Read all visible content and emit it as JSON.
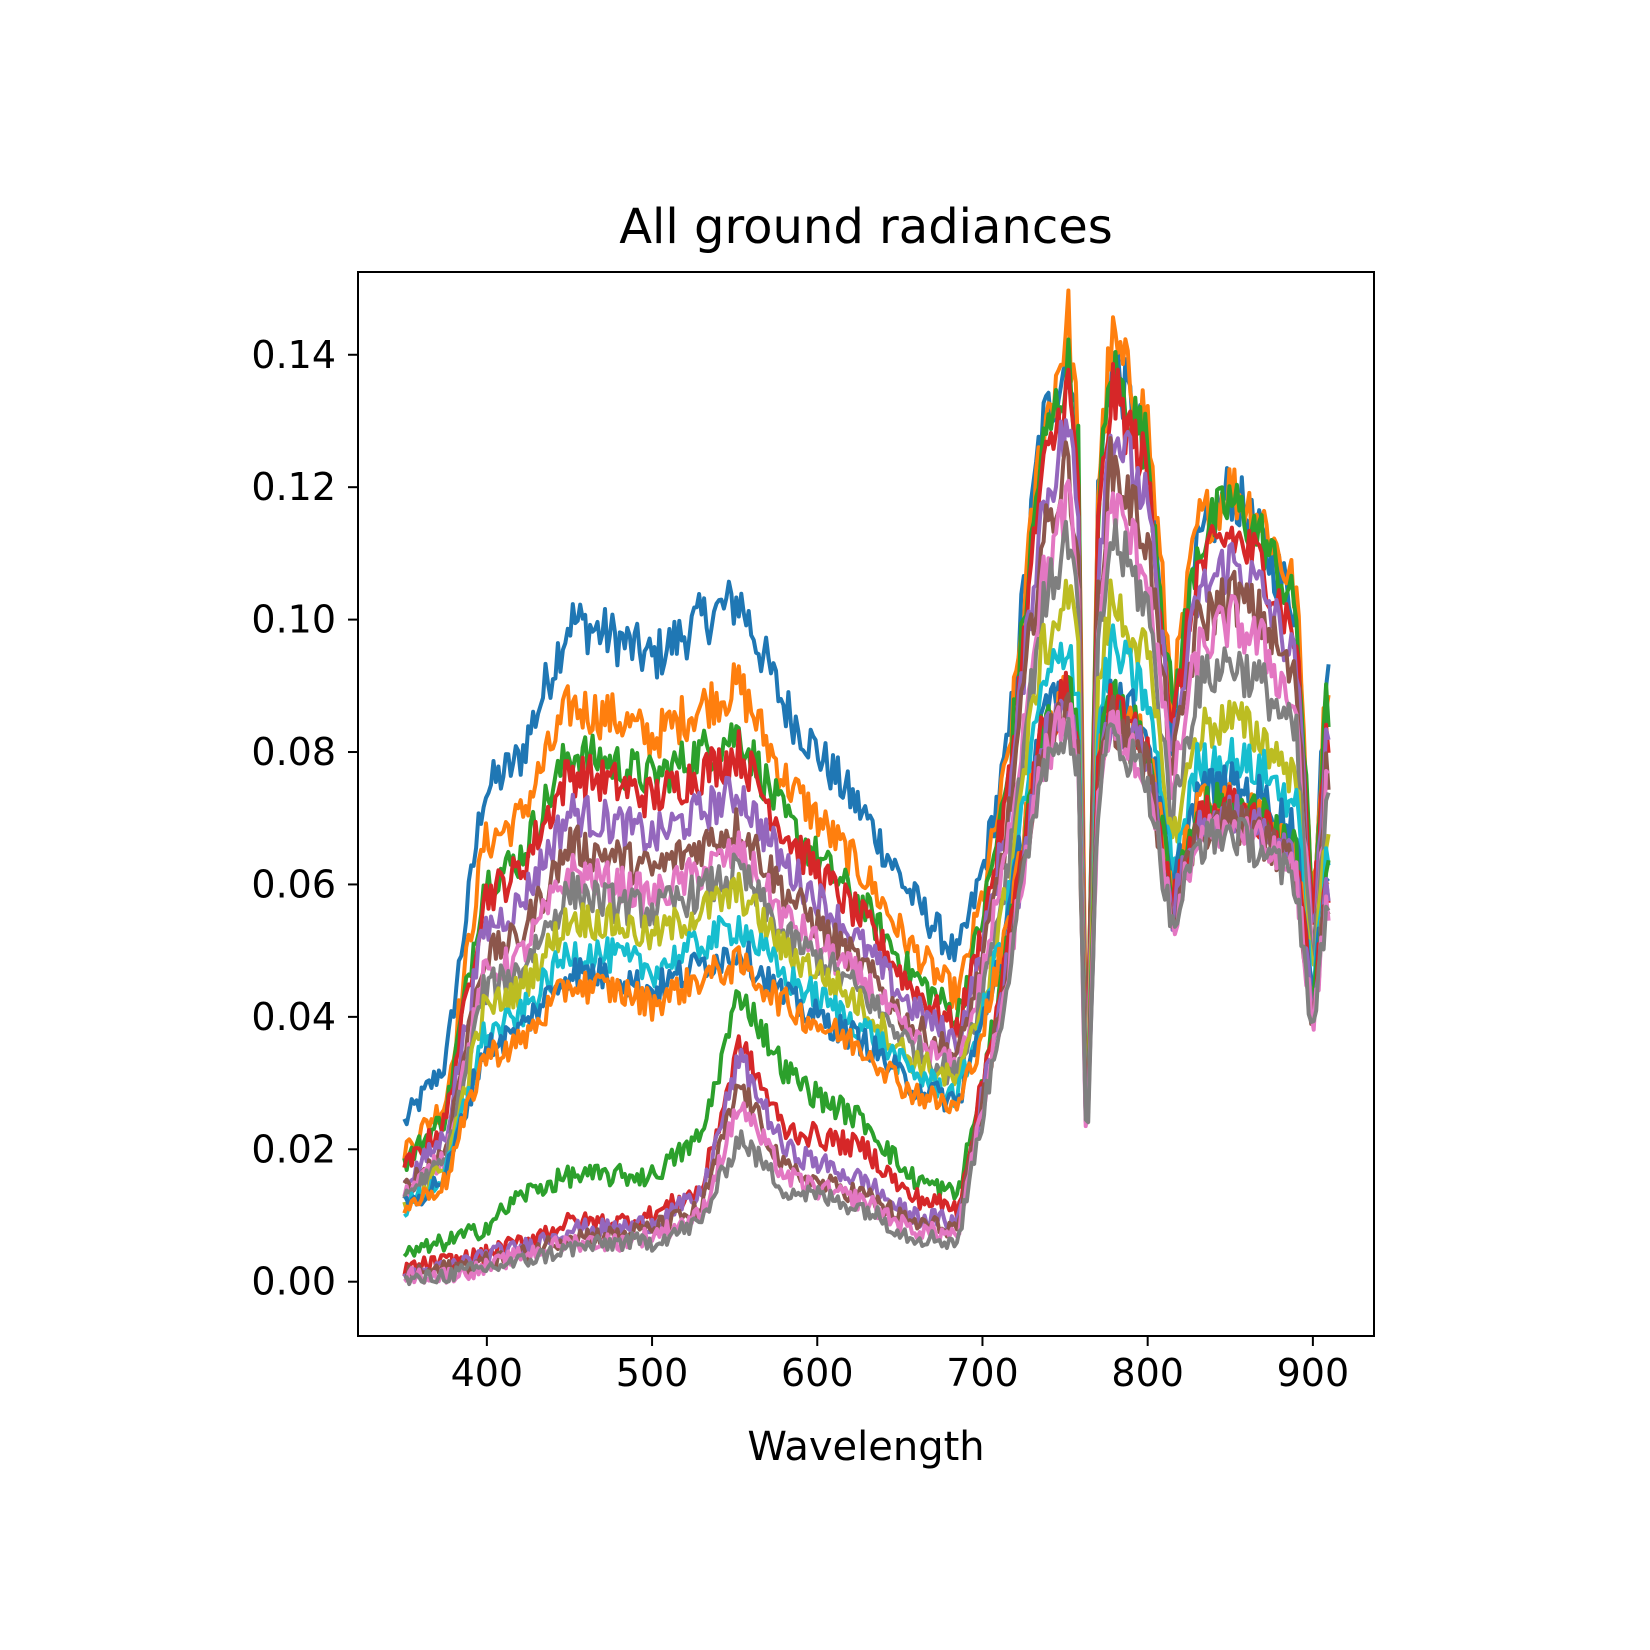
{
  "chart_data": {
    "type": "line",
    "title": "All ground radiances",
    "xlabel": "Wavelength",
    "ylabel": "",
    "xlim": [
      322,
      937
    ],
    "ylim": [
      -0.0082,
      0.1525
    ],
    "xticks": [
      400,
      500,
      600,
      700,
      800,
      900
    ],
    "yticks": [
      0.0,
      0.02,
      0.04,
      0.06,
      0.08,
      0.1,
      0.12,
      0.14
    ],
    "xtick_labels": [
      "400",
      "500",
      "600",
      "700",
      "800",
      "900"
    ],
    "ytick_labels": [
      "0.00",
      "0.02",
      "0.04",
      "0.06",
      "0.08",
      "0.10",
      "0.12",
      "0.14"
    ],
    "grid": false,
    "legend": "none",
    "wavelength_range": [
      350,
      910
    ],
    "colors": [
      "#1f77b4",
      "#ff7f0e",
      "#2ca02c",
      "#d62728",
      "#9467bd",
      "#8c564b",
      "#e377c2",
      "#7f7f7f",
      "#bcbd22",
      "#17becf"
    ],
    "anchor_x": [
      350,
      375,
      398,
      420,
      450,
      480,
      500,
      530,
      553,
      580,
      600,
      630,
      655,
      685,
      700,
      715,
      735,
      752,
      758,
      763,
      770,
      778,
      800,
      815,
      830,
      850,
      870,
      890,
      900,
      908
    ],
    "series": [
      {
        "values": [
          0.024,
          0.033,
          0.074,
          0.079,
          0.1,
          0.097,
          0.094,
          0.1,
          0.103,
          0.087,
          0.08,
          0.07,
          0.059,
          0.049,
          0.062,
          0.08,
          0.128,
          0.14,
          0.125,
          0.026,
          0.118,
          0.14,
          0.125,
          0.083,
          0.11,
          0.12,
          0.111,
          0.102,
          0.057,
          0.09
        ]
      },
      {
        "values": [
          0.02,
          0.027,
          0.066,
          0.07,
          0.087,
          0.085,
          0.082,
          0.087,
          0.09,
          0.076,
          0.07,
          0.061,
          0.051,
          0.043,
          0.058,
          0.078,
          0.126,
          0.145,
          0.128,
          0.027,
          0.12,
          0.142,
          0.13,
          0.088,
          0.114,
          0.12,
          0.115,
          0.104,
          0.057,
          0.09
        ]
      },
      {
        "values": [
          0.018,
          0.025,
          0.06,
          0.064,
          0.08,
          0.078,
          0.076,
          0.08,
          0.083,
          0.07,
          0.064,
          0.056,
          0.047,
          0.04,
          0.055,
          0.075,
          0.124,
          0.138,
          0.125,
          0.026,
          0.117,
          0.138,
          0.126,
          0.086,
          0.111,
          0.118,
          0.112,
          0.101,
          0.055,
          0.087
        ]
      },
      {
        "values": [
          0.017,
          0.024,
          0.058,
          0.062,
          0.077,
          0.075,
          0.073,
          0.077,
          0.08,
          0.068,
          0.062,
          0.054,
          0.045,
          0.038,
          0.053,
          0.073,
          0.12,
          0.135,
          0.12,
          0.025,
          0.113,
          0.135,
          0.122,
          0.083,
          0.107,
          0.113,
          0.108,
          0.097,
          0.053,
          0.083
        ]
      },
      {
        "values": [
          0.015,
          0.022,
          0.053,
          0.057,
          0.071,
          0.069,
          0.067,
          0.071,
          0.074,
          0.063,
          0.058,
          0.05,
          0.042,
          0.036,
          0.05,
          0.07,
          0.115,
          0.13,
          0.115,
          0.024,
          0.108,
          0.13,
          0.117,
          0.08,
          0.103,
          0.109,
          0.104,
          0.093,
          0.051,
          0.08
        ]
      },
      {
        "values": [
          0.014,
          0.02,
          0.049,
          0.052,
          0.066,
          0.064,
          0.062,
          0.066,
          0.069,
          0.059,
          0.054,
          0.047,
          0.039,
          0.034,
          0.048,
          0.068,
          0.11,
          0.124,
          0.11,
          0.023,
          0.103,
          0.124,
          0.112,
          0.077,
          0.099,
          0.104,
          0.1,
          0.09,
          0.049,
          0.077
        ]
      },
      {
        "values": [
          0.013,
          0.019,
          0.046,
          0.049,
          0.062,
          0.06,
          0.058,
          0.062,
          0.065,
          0.055,
          0.051,
          0.045,
          0.037,
          0.032,
          0.046,
          0.065,
          0.104,
          0.118,
          0.104,
          0.022,
          0.098,
          0.118,
          0.107,
          0.074,
          0.095,
          0.1,
          0.096,
          0.086,
          0.047,
          0.074
        ]
      },
      {
        "values": [
          0.013,
          0.018,
          0.044,
          0.047,
          0.059,
          0.057,
          0.056,
          0.059,
          0.062,
          0.052,
          0.049,
          0.043,
          0.036,
          0.031,
          0.044,
          0.062,
          0.1,
          0.113,
          0.1,
          0.021,
          0.094,
          0.113,
          0.102,
          0.07,
          0.09,
          0.094,
          0.09,
          0.082,
          0.046,
          0.071
        ]
      },
      {
        "values": [
          0.012,
          0.017,
          0.041,
          0.044,
          0.055,
          0.054,
          0.052,
          0.056,
          0.059,
          0.05,
          0.047,
          0.041,
          0.034,
          0.03,
          0.042,
          0.059,
          0.094,
          0.104,
          0.095,
          0.021,
          0.089,
          0.103,
          0.094,
          0.066,
          0.083,
          0.085,
          0.082,
          0.076,
          0.044,
          0.068
        ]
      },
      {
        "values": [
          0.011,
          0.016,
          0.037,
          0.04,
          0.05,
          0.049,
          0.047,
          0.051,
          0.054,
          0.046,
          0.043,
          0.038,
          0.032,
          0.028,
          0.04,
          0.056,
          0.088,
          0.097,
          0.088,
          0.02,
          0.083,
          0.096,
          0.088,
          0.062,
          0.078,
          0.079,
          0.077,
          0.072,
          0.042,
          0.065
        ]
      },
      {
        "values": [
          0.011,
          0.016,
          0.035,
          0.038,
          0.047,
          0.046,
          0.044,
          0.048,
          0.05,
          0.043,
          0.04,
          0.036,
          0.03,
          0.027,
          0.039,
          0.054,
          0.084,
          0.09,
          0.083,
          0.02,
          0.079,
          0.09,
          0.083,
          0.059,
          0.074,
          0.075,
          0.073,
          0.068,
          0.041,
          0.063
        ]
      },
      {
        "values": [
          0.011,
          0.015,
          0.034,
          0.036,
          0.045,
          0.044,
          0.042,
          0.046,
          0.048,
          0.042,
          0.039,
          0.035,
          0.029,
          0.026,
          0.038,
          0.053,
          0.082,
          0.089,
          0.082,
          0.02,
          0.078,
          0.088,
          0.081,
          0.058,
          0.072,
          0.072,
          0.07,
          0.065,
          0.04,
          0.061
        ]
      },
      {
        "values": [
          0.004,
          0.006,
          0.008,
          0.013,
          0.016,
          0.016,
          0.016,
          0.022,
          0.044,
          0.032,
          0.028,
          0.024,
          0.016,
          0.013,
          0.03,
          0.05,
          0.082,
          0.09,
          0.082,
          0.02,
          0.078,
          0.088,
          0.081,
          0.058,
          0.072,
          0.072,
          0.07,
          0.065,
          0.04,
          0.061
        ]
      },
      {
        "values": [
          0.002,
          0.003,
          0.004,
          0.006,
          0.009,
          0.009,
          0.01,
          0.014,
          0.036,
          0.023,
          0.022,
          0.02,
          0.013,
          0.011,
          0.03,
          0.05,
          0.082,
          0.089,
          0.081,
          0.02,
          0.077,
          0.087,
          0.08,
          0.057,
          0.07,
          0.072,
          0.069,
          0.064,
          0.04,
          0.06
        ]
      },
      {
        "values": [
          0.001,
          0.002,
          0.004,
          0.005,
          0.008,
          0.008,
          0.009,
          0.013,
          0.034,
          0.02,
          0.018,
          0.015,
          0.01,
          0.009,
          0.028,
          0.048,
          0.08,
          0.088,
          0.08,
          0.019,
          0.076,
          0.086,
          0.079,
          0.056,
          0.069,
          0.071,
          0.068,
          0.063,
          0.039,
          0.059
        ]
      },
      {
        "values": [
          0.001,
          0.002,
          0.003,
          0.004,
          0.007,
          0.007,
          0.008,
          0.011,
          0.03,
          0.017,
          0.015,
          0.013,
          0.009,
          0.008,
          0.027,
          0.047,
          0.079,
          0.087,
          0.079,
          0.019,
          0.075,
          0.085,
          0.078,
          0.055,
          0.068,
          0.07,
          0.067,
          0.062,
          0.038,
          0.058
        ]
      },
      {
        "values": [
          0.001,
          0.001,
          0.002,
          0.004,
          0.006,
          0.006,
          0.007,
          0.01,
          0.027,
          0.016,
          0.014,
          0.012,
          0.008,
          0.007,
          0.026,
          0.046,
          0.078,
          0.086,
          0.078,
          0.019,
          0.074,
          0.084,
          0.077,
          0.054,
          0.067,
          0.069,
          0.066,
          0.061,
          0.038,
          0.057
        ]
      },
      {
        "values": [
          0.0,
          0.001,
          0.002,
          0.003,
          0.005,
          0.006,
          0.006,
          0.009,
          0.022,
          0.014,
          0.013,
          0.011,
          0.007,
          0.006,
          0.025,
          0.045,
          0.077,
          0.085,
          0.077,
          0.018,
          0.073,
          0.083,
          0.076,
          0.053,
          0.066,
          0.068,
          0.065,
          0.06,
          0.037,
          0.056
        ]
      }
    ]
  }
}
